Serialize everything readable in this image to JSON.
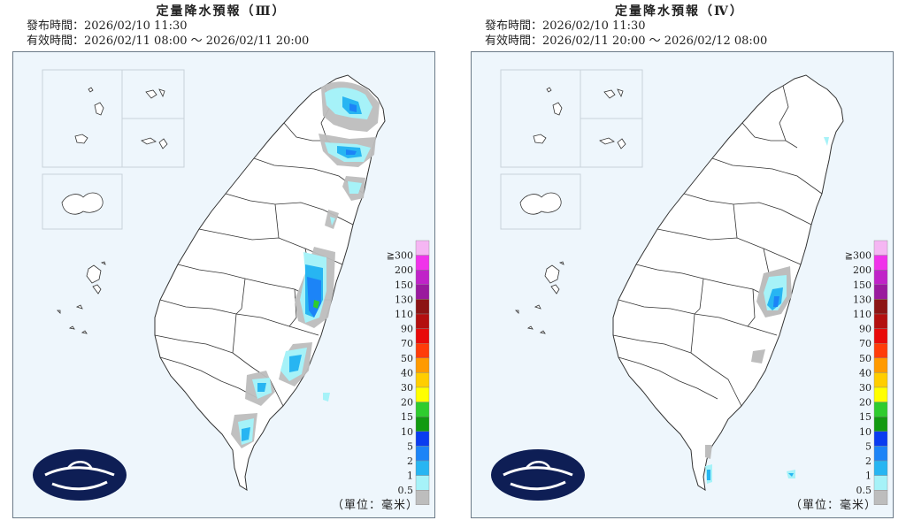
{
  "left_panel": {
    "title": "定量降水預報（Ⅲ）",
    "issue_time": "發布時間：2026/02/10 11:30",
    "valid_time": "有效時間：2026/02/11 08:00 ～ 2026/02/11 20:00",
    "unit": "（單位：毫米）"
  },
  "right_panel": {
    "title": "定量降水預報（Ⅳ）",
    "issue_time": "發布時間：2026/02/10 11:30",
    "valid_time": "有效時間：2026/02/11 20:00 ～ 2026/02/12 08:00",
    "unit": "（單位：毫米）"
  },
  "legend": {
    "labels": [
      "≧300",
      "200",
      "150",
      "130",
      "110",
      "90",
      "70",
      "50",
      "40",
      "30",
      "20",
      "15",
      "10",
      "5",
      "2",
      "1",
      "0.5"
    ],
    "colors": [
      "#f5b6f3",
      "#f033ea",
      "#c023c8",
      "#9a1a9e",
      "#8c1414",
      "#b30f0f",
      "#e80a0a",
      "#ff3c0a",
      "#ff9a00",
      "#ffce00",
      "#ffff00",
      "#2ecc2e",
      "#119a11",
      "#0a3cf0",
      "#1c84f7",
      "#27b5f2",
      "#a6f2f8",
      "#bdbdbd"
    ]
  },
  "colors": {
    "frame_bg": "#eef6fc",
    "land": "#ffffff",
    "border": "#333333",
    "logo": "#0e1e55"
  }
}
